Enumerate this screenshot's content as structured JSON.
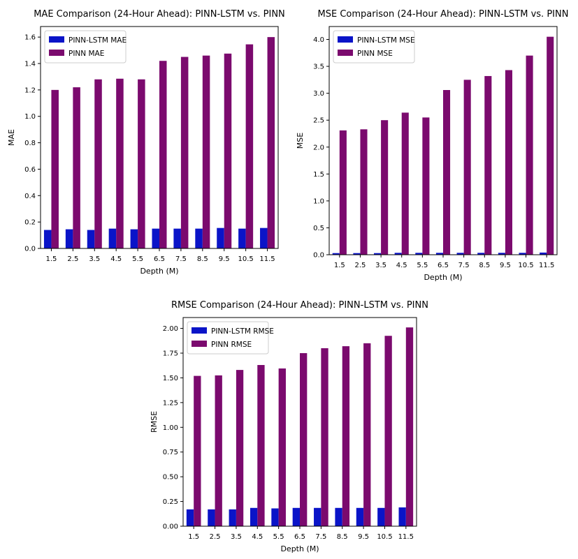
{
  "chart_data": [
    {
      "id": "mae",
      "type": "bar",
      "title": "MAE Comparison (24-Hour Ahead): PINN-LSTM vs. PINN",
      "xlabel": "Depth (M)",
      "ylabel": "MAE",
      "categories": [
        "1.5",
        "2.5",
        "3.5",
        "4.5",
        "5.5",
        "6.5",
        "7.5",
        "8.5",
        "9.5",
        "10.5",
        "11.5"
      ],
      "ylim": [
        0,
        1.68
      ],
      "yticks": [
        "0.0",
        "0.2",
        "0.4",
        "0.6",
        "0.8",
        "1.0",
        "1.2",
        "1.4",
        "1.6"
      ],
      "legend_position": "top-left",
      "series": [
        {
          "name": "PINN-LSTM MAE",
          "color": "#0a14c8",
          "values": [
            0.14,
            0.145,
            0.14,
            0.15,
            0.145,
            0.15,
            0.15,
            0.15,
            0.155,
            0.15,
            0.155
          ]
        },
        {
          "name": "PINN MAE",
          "color": "#7b0a6e",
          "values": [
            1.2,
            1.22,
            1.28,
            1.285,
            1.28,
            1.42,
            1.45,
            1.46,
            1.475,
            1.545,
            1.6
          ]
        }
      ]
    },
    {
      "id": "mse",
      "type": "bar",
      "title": "MSE Comparison (24-Hour Ahead): PINN-LSTM vs. PINN",
      "xlabel": "Depth (M)",
      "ylabel": "MSE",
      "categories": [
        "1.5",
        "2.5",
        "3.5",
        "4.5",
        "5.5",
        "6.5",
        "7.5",
        "8.5",
        "9.5",
        "10.5",
        "11.5"
      ],
      "ylim": [
        0,
        4.24
      ],
      "yticks": [
        "0.0",
        "0.5",
        "1.0",
        "1.5",
        "2.0",
        "2.5",
        "3.0",
        "3.5",
        "4.0"
      ],
      "legend_position": "top-left",
      "series": [
        {
          "name": "PINN-LSTM MSE",
          "color": "#0a14c8",
          "values": [
            0.03,
            0.03,
            0.03,
            0.035,
            0.035,
            0.035,
            0.035,
            0.035,
            0.035,
            0.035,
            0.04
          ]
        },
        {
          "name": "PINN MSE",
          "color": "#7b0a6e",
          "values": [
            2.31,
            2.33,
            2.5,
            2.64,
            2.55,
            3.06,
            3.25,
            3.32,
            3.43,
            3.7,
            4.05
          ]
        }
      ]
    },
    {
      "id": "rmse",
      "type": "bar",
      "title": "RMSE Comparison (24-Hour Ahead): PINN-LSTM vs. PINN",
      "xlabel": "Depth (M)",
      "ylabel": "RMSE",
      "categories": [
        "1.5",
        "2.5",
        "3.5",
        "4.5",
        "5.5",
        "6.5",
        "7.5",
        "8.5",
        "9.5",
        "10.5",
        "11.5"
      ],
      "ylim": [
        0,
        2.11
      ],
      "yticks": [
        "0.00",
        "0.25",
        "0.50",
        "0.75",
        "1.00",
        "1.25",
        "1.50",
        "1.75",
        "2.00"
      ],
      "legend_position": "top-left",
      "series": [
        {
          "name": "PINN-LSTM RMSE",
          "color": "#0a14c8",
          "values": [
            0.17,
            0.17,
            0.17,
            0.185,
            0.18,
            0.185,
            0.185,
            0.185,
            0.185,
            0.185,
            0.19
          ]
        },
        {
          "name": "PINN RMSE",
          "color": "#7b0a6e",
          "values": [
            1.52,
            1.525,
            1.58,
            1.63,
            1.595,
            1.75,
            1.8,
            1.82,
            1.85,
            1.925,
            2.01
          ]
        }
      ]
    }
  ]
}
